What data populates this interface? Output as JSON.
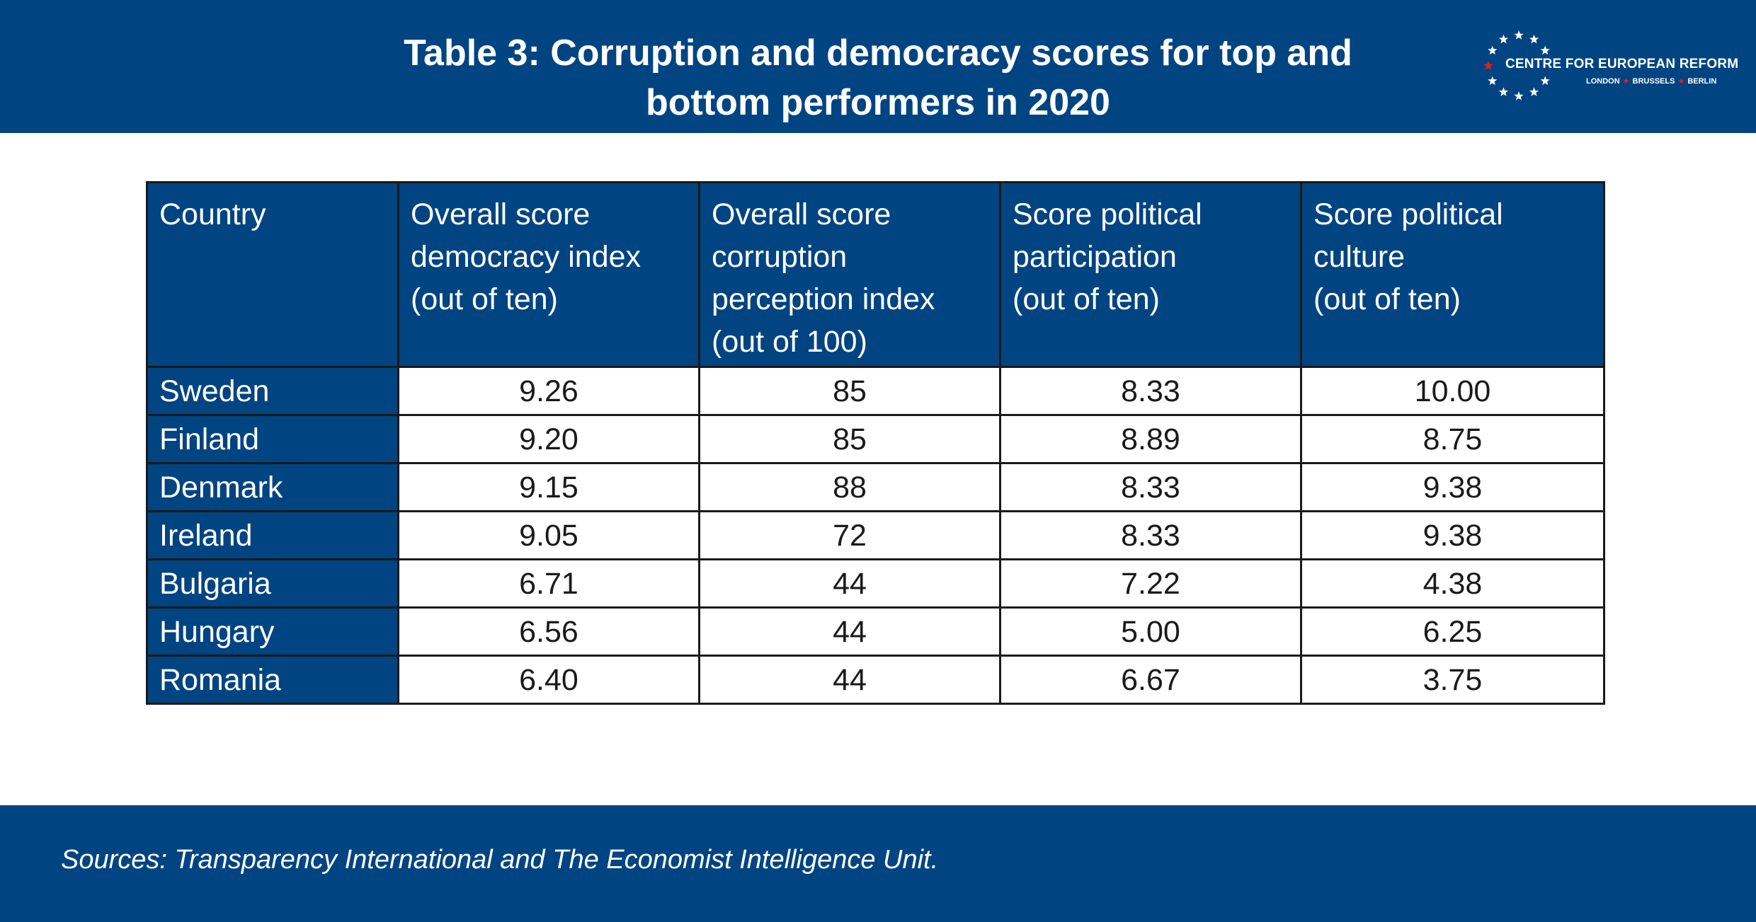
{
  "header": {
    "title_line1": "Table 3: Corruption and democracy scores for top and",
    "title_line2": "bottom performers in 2020",
    "logo_name": "CENTRE FOR EUROPEAN REFORM",
    "logo_city_1": "LONDON",
    "logo_city_2": "BRUSSELS",
    "logo_city_3": "BERLIN",
    "logo_separator": "★"
  },
  "colors": {
    "brand_blue": "#004481",
    "accent_red": "#e2231a",
    "text_dark": "#1a1a1a"
  },
  "chart_data": {
    "type": "table",
    "title": "Table 3: Corruption and democracy scores for top and bottom performers in 2020",
    "columns": [
      "Country",
      "Overall score democracy index (out of ten)",
      "Overall score corruption perception index (out of 100)",
      "Score political participation (out of ten)",
      "Score political culture (out of ten)"
    ],
    "header_lines": [
      [
        "Country"
      ],
      [
        "Overall score",
        "democracy index",
        "(out of ten)"
      ],
      [
        "Overall score",
        "corruption",
        "perception index",
        "(out of 100)"
      ],
      [
        "Score political",
        "participation",
        "(out of ten)"
      ],
      [
        "Score political",
        "culture",
        "(out of ten)"
      ]
    ],
    "rows": [
      [
        "Sweden",
        "9.26",
        "85",
        "8.33",
        "10.00"
      ],
      [
        "Finland",
        "9.20",
        "85",
        "8.89",
        "8.75"
      ],
      [
        "Denmark",
        "9.15",
        "88",
        "8.33",
        "9.38"
      ],
      [
        "Ireland",
        "9.05",
        "72",
        "8.33",
        "9.38"
      ],
      [
        "Bulgaria",
        "6.71",
        "44",
        "7.22",
        "4.38"
      ],
      [
        "Hungary",
        "6.56",
        "44",
        "5.00",
        "6.25"
      ],
      [
        "Romania",
        "6.40",
        "44",
        "6.67",
        "3.75"
      ]
    ]
  },
  "footer": {
    "source": "Sources: Transparency International and The Economist Intelligence Unit."
  }
}
